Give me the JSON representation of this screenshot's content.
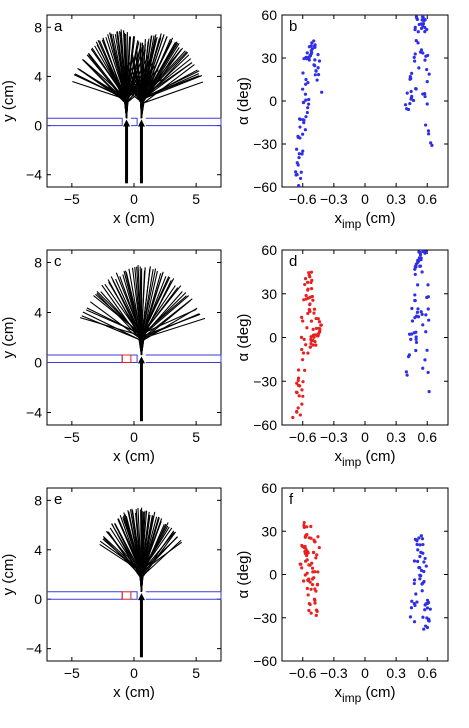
{
  "figure": {
    "left_xlabel": "x (cm)",
    "left_ylabel": "y (cm)",
    "right_xlabel_main": "x",
    "right_xlabel_sub": "imp",
    "right_xlabel_unit": " (cm)",
    "right_ylabel": "α (deg)"
  },
  "chart_data": [
    {
      "panel": "a",
      "type": "line",
      "title": "",
      "xlabel": "x (cm)",
      "ylabel": "y (cm)",
      "xlim": [
        -7,
        7
      ],
      "ylim": [
        -5,
        9
      ],
      "xticks": [
        -5,
        0,
        5
      ],
      "yticks": [
        -4,
        0,
        4,
        8
      ],
      "xtick_labels": [
        "−5",
        "0",
        "5"
      ],
      "ytick_labels": [
        "−4",
        "0",
        "4",
        "8"
      ],
      "grid": false,
      "sources": [
        {
          "x": -0.6,
          "lines": 60,
          "fan_x_range": [
            -5,
            2.4
          ],
          "fan_y_range": [
            3.6,
            7.6
          ]
        },
        {
          "x": 0.6,
          "lines": 60,
          "fan_x_range": [
            -1.4,
            5.6
          ],
          "fan_y_range": [
            3.6,
            7.3
          ]
        }
      ],
      "slits": {
        "open": [
          -0.6,
          0.6
        ],
        "blocked": [],
        "wall_y": [
          0,
          0.6
        ],
        "color": "#3b3bdc",
        "blocked_color": "#e02020"
      }
    },
    {
      "panel": "b",
      "type": "scatter",
      "title": "",
      "xlabel": "x_imp (cm)",
      "ylabel": "α (deg)",
      "xlim": [
        -0.8,
        0.8
      ],
      "ylim": [
        -60,
        60
      ],
      "xticks": [
        -0.6,
        -0.3,
        0,
        0.3,
        0.6
      ],
      "yticks": [
        -60,
        -30,
        0,
        30,
        60
      ],
      "xtick_labels": [
        "−0.6",
        "−0.3",
        "0",
        "0.3",
        "0.6"
      ],
      "ytick_labels": [
        "−60",
        "−30",
        "0",
        "30",
        "60"
      ],
      "grid": false,
      "series": [
        {
          "color": "#2f2fe8",
          "count": 70,
          "points_x": [
            -0.66,
            -0.62,
            -0.58,
            -0.55,
            -0.5,
            -0.45
          ],
          "points_y": [
            -58,
            -30,
            0,
            30,
            40,
            10
          ]
        },
        {
          "color": "#2f2fe8",
          "count": 60,
          "points_x": [
            0.42,
            0.48,
            0.52,
            0.55,
            0.58,
            0.62
          ],
          "points_y": [
            -5,
            20,
            55,
            58,
            30,
            -45
          ]
        }
      ]
    },
    {
      "panel": "c",
      "type": "line",
      "title": "",
      "xlabel": "x (cm)",
      "ylabel": "y (cm)",
      "xlim": [
        -7,
        7
      ],
      "ylim": [
        -5,
        9
      ],
      "xticks": [
        -5,
        0,
        5
      ],
      "yticks": [
        -4,
        0,
        4,
        8
      ],
      "xtick_labels": [
        "−5",
        "0",
        "5"
      ],
      "ytick_labels": [
        "−4",
        "0",
        "4",
        "8"
      ],
      "grid": false,
      "sources": [
        {
          "x": 0.6,
          "lines": 60,
          "fan_x_range": [
            -4.4,
            5.6
          ],
          "fan_y_range": [
            3.6,
            7.6
          ]
        }
      ],
      "slits": {
        "open": [
          0.6
        ],
        "blocked": [
          -0.6
        ],
        "wall_y": [
          0,
          0.6
        ],
        "color": "#3b3bdc",
        "blocked_color": "#e02020"
      }
    },
    {
      "panel": "d",
      "type": "scatter",
      "title": "",
      "xlabel": "x_imp (cm)",
      "ylabel": "α (deg)",
      "xlim": [
        -0.8,
        0.8
      ],
      "ylim": [
        -60,
        60
      ],
      "xticks": [
        -0.6,
        -0.3,
        0,
        0.3,
        0.6
      ],
      "yticks": [
        -60,
        -30,
        0,
        30,
        60
      ],
      "xtick_labels": [
        "−0.6",
        "−0.3",
        "0",
        "0.3",
        "0.6"
      ],
      "ytick_labels": [
        "−60",
        "−30",
        "0",
        "30",
        "60"
      ],
      "grid": false,
      "series": [
        {
          "color": "#e82020",
          "count": 85,
          "points_x": [
            -0.66,
            -0.6,
            -0.55,
            -0.5,
            -0.45
          ],
          "points_y": [
            -58,
            -20,
            45,
            -5,
            10
          ]
        },
        {
          "color": "#2f2fe8",
          "count": 60,
          "points_x": [
            0.42,
            0.48,
            0.52,
            0.56,
            0.6
          ],
          "points_y": [
            -25,
            10,
            55,
            55,
            -45
          ]
        }
      ]
    },
    {
      "panel": "e",
      "type": "line",
      "title": "",
      "xlabel": "x (cm)",
      "ylabel": "y (cm)",
      "xlim": [
        -7,
        7
      ],
      "ylim": [
        -5,
        9
      ],
      "xticks": [
        -5,
        0,
        5
      ],
      "yticks": [
        -4,
        0,
        4,
        8
      ],
      "xtick_labels": [
        "−5",
        "0",
        "5"
      ],
      "ytick_labels": [
        "−4",
        "0",
        "4",
        "8"
      ],
      "grid": false,
      "sources": [
        {
          "x": 0.6,
          "lines": 60,
          "fan_x_range": [
            -2.8,
            3.8
          ],
          "fan_y_range": [
            4.6,
            7.2
          ]
        }
      ],
      "slits": {
        "open": [
          0.6
        ],
        "blocked": [
          -0.6
        ],
        "wall_y": [
          0,
          0.6
        ],
        "color": "#3b3bdc",
        "blocked_color": "#e02020"
      }
    },
    {
      "panel": "f",
      "type": "scatter",
      "title": "",
      "xlabel": "x_imp (cm)",
      "ylabel": "α (deg)",
      "xlim": [
        -0.8,
        0.8
      ],
      "ylim": [
        -60,
        60
      ],
      "xticks": [
        -0.6,
        -0.3,
        0,
        0.3,
        0.6
      ],
      "yticks": [
        -60,
        -30,
        0,
        30,
        60
      ],
      "xtick_labels": [
        "−0.6",
        "−0.3",
        "0",
        "0.3",
        "0.6"
      ],
      "ytick_labels": [
        "−60",
        "−30",
        "0",
        "30",
        "60"
      ],
      "grid": false,
      "series": [
        {
          "color": "#e82020",
          "count": 70,
          "points_x": [
            -0.6,
            -0.55,
            -0.5,
            -0.45
          ],
          "points_y": [
            -5,
            35,
            -30,
            30
          ]
        },
        {
          "color": "#2f2fe8",
          "count": 55,
          "points_x": [
            0.46,
            0.52,
            0.56,
            0.6
          ],
          "points_y": [
            -30,
            30,
            0,
            -35
          ]
        }
      ]
    }
  ]
}
